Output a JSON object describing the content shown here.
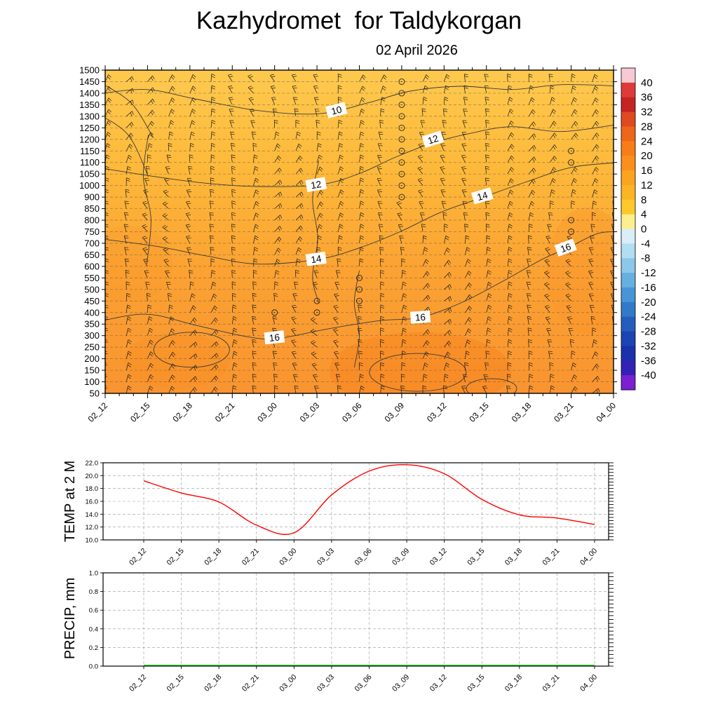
{
  "title": "Kazhydromet  for Taldykorgan",
  "subtitle": "02 April 2026",
  "chart_data": [
    {
      "name": "upper-air-meteogram",
      "type": "heatmap",
      "title": "Time-height temperature cross-section with wind barbs",
      "x": [
        "02_12",
        "02_15",
        "02_18",
        "02_21",
        "03_00",
        "03_03",
        "03_06",
        "03_09",
        "03_12",
        "03_15",
        "03_18",
        "03_21",
        "04_00"
      ],
      "y_ticks": [
        "1500",
        "1450",
        "1400",
        "1350",
        "1300",
        "1250",
        "1200",
        "1150",
        "1100",
        "1050",
        "1000",
        "900",
        "850",
        "800",
        "750",
        "700",
        "650",
        "600",
        "550",
        "500",
        "450",
        "400",
        "350",
        "300",
        "250",
        "200",
        "150",
        "100",
        "50"
      ],
      "grid": "dashed-horizontal",
      "fill_stops": [
        {
          "offset": "0%",
          "color": "#fec94e"
        },
        {
          "offset": "30%",
          "color": "#fdb93a"
        },
        {
          "offset": "62%",
          "color": "#fba232"
        },
        {
          "offset": "100%",
          "color": "#f99430"
        }
      ],
      "contour_labels": [
        {
          "text": "10",
          "fx": 0.455,
          "fy": 0.125,
          "rot": -14
        },
        {
          "text": "12",
          "fx": 0.645,
          "fy": 0.215,
          "rot": -18
        },
        {
          "text": "12",
          "fx": 0.415,
          "fy": 0.355,
          "rot": -10
        },
        {
          "text": "14",
          "fx": 0.742,
          "fy": 0.39,
          "rot": -16
        },
        {
          "text": "14",
          "fx": 0.415,
          "fy": 0.585,
          "rot": -8
        },
        {
          "text": "16",
          "fx": 0.906,
          "fy": 0.55,
          "rot": -20
        },
        {
          "text": "16",
          "fx": 0.62,
          "fy": 0.765,
          "rot": -4
        },
        {
          "text": "16",
          "fx": 0.333,
          "fy": 0.828,
          "rot": -6
        }
      ],
      "colorbar": {
        "position": "right",
        "ticks": [
          "40",
          "36",
          "32",
          "28",
          "24",
          "20",
          "16",
          "12",
          "8",
          "4",
          "0",
          "-4",
          "-8",
          "-12",
          "-16",
          "-20",
          "-24",
          "-28",
          "-32",
          "-36",
          "-40"
        ],
        "band_colors": [
          "#f6c9d4",
          "#df3a3a",
          "#c62323",
          "#df4a1e",
          "#ee661a",
          "#f87d18",
          "#fb8f1c",
          "#fca320",
          "#fdb424",
          "#fdc92a",
          "#fcf08e",
          "#d9eef7",
          "#b3ddf1",
          "#8bc8e9",
          "#65b0e0",
          "#4795d5",
          "#327ac9",
          "#255dbd",
          "#1d44b3",
          "#1a31ab",
          "#3421b5",
          "#7a20d0"
        ]
      }
    },
    {
      "name": "temp-2m",
      "type": "line",
      "ylabel": "TEMP at 2 M",
      "x": [
        "02_12",
        "02_15",
        "02_18",
        "02_21",
        "03_00",
        "03_03",
        "03_06",
        "03_09",
        "03_12",
        "03_15",
        "03_18",
        "03_21",
        "04_00"
      ],
      "values": [
        19.2,
        17.3,
        15.9,
        12.3,
        11.1,
        17.0,
        20.7,
        21.7,
        20.3,
        16.3,
        13.9,
        13.4,
        12.4
      ],
      "ylim": [
        10,
        22
      ],
      "y_ticks": [
        "22.0",
        "20.0",
        "18.0",
        "16.0",
        "14.0",
        "12.0",
        "10.0"
      ],
      "grid": "dashed",
      "line_color": "#ff0000"
    },
    {
      "name": "precip",
      "type": "line",
      "ylabel": "PRECIP, mm",
      "x": [
        "02_12",
        "02_15",
        "02_18",
        "02_21",
        "03_00",
        "03_03",
        "03_06",
        "03_09",
        "03_12",
        "03_15",
        "03_18",
        "03_21",
        "04_00"
      ],
      "values": [
        0,
        0,
        0,
        0,
        0,
        0,
        0,
        0,
        0,
        0,
        0,
        0,
        0
      ],
      "ylim": [
        0,
        1
      ],
      "y_ticks": [
        "1.0",
        "0.8",
        "0.6",
        "0.4",
        "0.2",
        "0.0"
      ],
      "grid": "dashed",
      "line_color": "#00a000"
    }
  ]
}
